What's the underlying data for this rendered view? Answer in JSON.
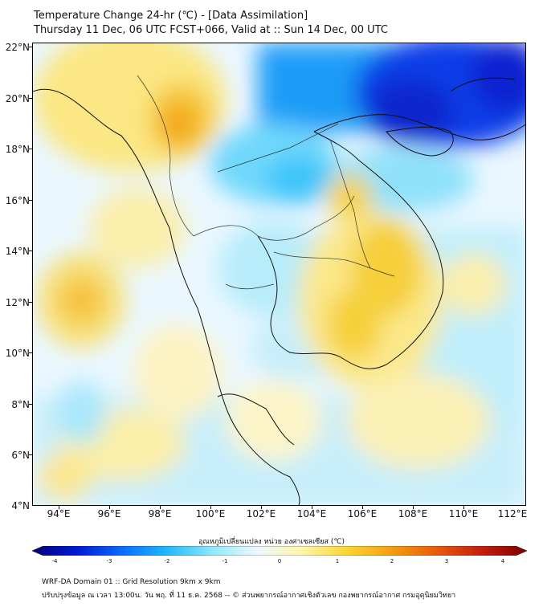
{
  "title_line1": "Temperature Change 24-hr (℃) - [Data Assimilation]",
  "title_line2": "Thursday 11 Dec, 06 UTC FCST+066, Valid at :: Sun 14 Dec, 00 UTC",
  "y_axis_labels": [
    "22°N",
    "20°N",
    "18°N",
    "16°N",
    "14°N",
    "12°N",
    "10°N",
    "8°N",
    "6°N",
    "4°N"
  ],
  "x_axis_labels": [
    "94°E",
    "96°E",
    "98°E",
    "100°E",
    "102°E",
    "104°E",
    "106°E",
    "108°E",
    "110°E",
    "112°E"
  ],
  "colorbar": {
    "title": "อุณหภูมิเปลี่ยนแปลง หน่วย องศาเซลเซียส (℃)",
    "ticks": [
      "-4",
      "-3",
      "-2",
      "-1",
      "0",
      "1",
      "2",
      "3",
      "4"
    ],
    "range": [
      -4,
      4
    ],
    "colors": [
      "#00007a",
      "#0019d6",
      "#0a6bff",
      "#1fb8ff",
      "#8ee8fb",
      "#eef8ff",
      "#fff6a8",
      "#f9d631",
      "#f59d0e",
      "#e85a0c",
      "#c51d0e",
      "#7a0000"
    ]
  },
  "footer_line1": "WRF-DA Domain 01 :: Grid Resolution 9km x 9km",
  "footer_line2": "ปรับปรุงข้อมูล ณ เวลา 13:00น. วัน พฤ. ที่ 11 ธ.ค. 2568 -- © ส่วนพยากรณ์อากาศเชิงตัวเลข กองพยากรณ์อากาศ กรมอุตุนิยมวิทยา"
}
